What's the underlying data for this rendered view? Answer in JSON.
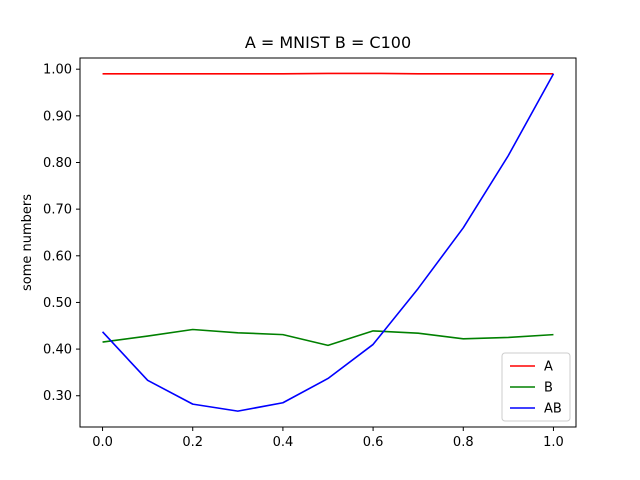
{
  "chart_data": {
    "type": "line",
    "title": "A = MNIST B = C100",
    "xlabel": "",
    "ylabel": "some numbers",
    "xlim": [
      -0.05,
      1.05
    ],
    "ylim": [
      0.233,
      1.024
    ],
    "x": [
      0.0,
      0.1,
      0.2,
      0.3,
      0.4,
      0.5,
      0.6,
      0.7,
      0.8,
      0.9,
      1.0
    ],
    "xticks": [
      0.0,
      0.2,
      0.4,
      0.6,
      0.8,
      1.0
    ],
    "xtick_labels": [
      "0.0",
      "0.2",
      "0.4",
      "0.6",
      "0.8",
      "1.0"
    ],
    "yticks": [
      0.3,
      0.4,
      0.5,
      0.6,
      0.7,
      0.8,
      0.9,
      1.0
    ],
    "ytick_labels": [
      "0.30",
      "0.40",
      "0.50",
      "0.60",
      "0.70",
      "0.80",
      "0.90",
      "1.00"
    ],
    "legend_position": "bottom-right",
    "grid": false,
    "series": [
      {
        "name": "A",
        "color": "#ff0000",
        "values": [
          0.99,
          0.99,
          0.99,
          0.99,
          0.99,
          0.991,
          0.991,
          0.99,
          0.99,
          0.99,
          0.99
        ]
      },
      {
        "name": "B",
        "color": "#008000",
        "values": [
          0.415,
          0.428,
          0.442,
          0.435,
          0.431,
          0.408,
          0.439,
          0.434,
          0.422,
          0.425,
          0.431
        ]
      },
      {
        "name": "AB",
        "color": "#0000ff",
        "values": [
          0.437,
          0.333,
          0.282,
          0.267,
          0.285,
          0.337,
          0.41,
          0.53,
          0.66,
          0.815,
          0.99
        ]
      }
    ]
  }
}
